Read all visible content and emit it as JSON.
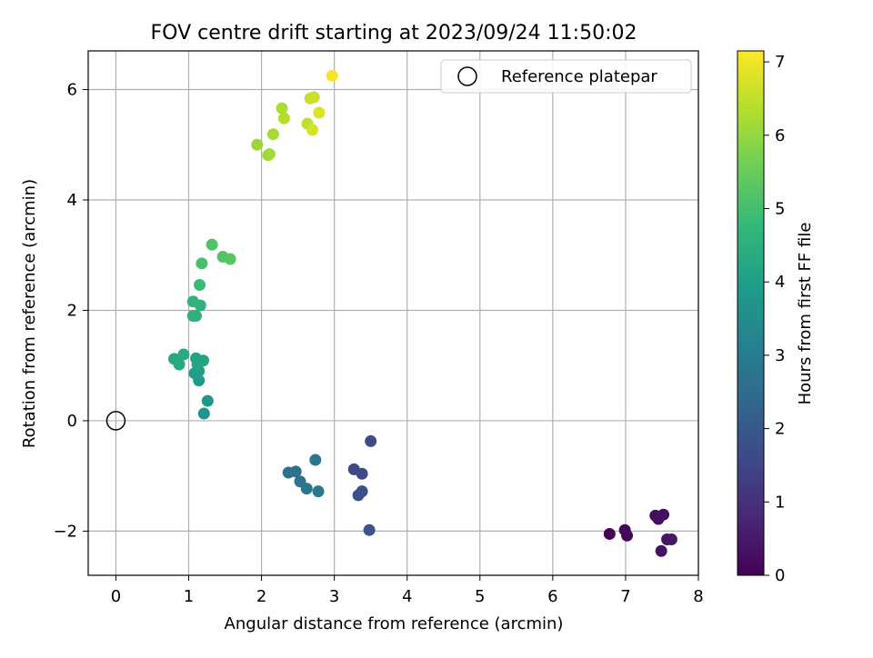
{
  "chart_data": {
    "type": "scatter",
    "title": "FOV centre drift starting at 2023/09/24 11:50:02",
    "xlabel": "Angular distance from reference (arcmin)",
    "ylabel": "Rotation from reference (arcmin)",
    "xlim": [
      -0.38,
      8.0
    ],
    "ylim": [
      -2.8,
      6.7
    ],
    "xticks": [
      0,
      1,
      2,
      3,
      4,
      5,
      6,
      7,
      8
    ],
    "yticks": [
      -2,
      0,
      2,
      4,
      6
    ],
    "ytick_labels": [
      "−2",
      "0",
      "2",
      "4",
      "6"
    ],
    "grid": true,
    "legend": {
      "placement": "top-right",
      "entries": [
        "Reference platepar"
      ]
    },
    "reference_point": {
      "x": 0,
      "y": 0,
      "label": "Reference platepar"
    },
    "colorbar": {
      "label": "Hours from first FF file",
      "range": [
        0,
        7.15
      ],
      "ticks": [
        0,
        1,
        2,
        3,
        4,
        5,
        6,
        7
      ],
      "colormap": "viridis"
    },
    "points": [
      {
        "x": 6.78,
        "y": -2.05,
        "h": 0.05
      },
      {
        "x": 6.99,
        "y": -1.98,
        "h": 0.1
      },
      {
        "x": 7.02,
        "y": -2.08,
        "h": 0.15
      },
      {
        "x": 7.41,
        "y": -1.72,
        "h": 0.2
      },
      {
        "x": 7.45,
        "y": -1.78,
        "h": 0.25
      },
      {
        "x": 7.52,
        "y": -1.7,
        "h": 0.3
      },
      {
        "x": 7.49,
        "y": -2.36,
        "h": 0.35
      },
      {
        "x": 7.57,
        "y": -2.15,
        "h": 0.4
      },
      {
        "x": 7.63,
        "y": -2.15,
        "h": 0.45
      },
      {
        "x": 3.27,
        "y": -0.88,
        "h": 1.6
      },
      {
        "x": 3.38,
        "y": -0.96,
        "h": 1.65
      },
      {
        "x": 3.5,
        "y": -0.37,
        "h": 1.7
      },
      {
        "x": 3.38,
        "y": -1.28,
        "h": 1.75
      },
      {
        "x": 3.33,
        "y": -1.35,
        "h": 1.8
      },
      {
        "x": 3.48,
        "y": -1.98,
        "h": 1.85
      },
      {
        "x": 2.37,
        "y": -0.94,
        "h": 2.65
      },
      {
        "x": 2.47,
        "y": -0.92,
        "h": 2.7
      },
      {
        "x": 2.53,
        "y": -1.1,
        "h": 2.75
      },
      {
        "x": 2.62,
        "y": -1.23,
        "h": 2.8
      },
      {
        "x": 2.74,
        "y": -0.71,
        "h": 2.85
      },
      {
        "x": 2.78,
        "y": -1.28,
        "h": 2.9
      },
      {
        "x": 1.21,
        "y": 0.13,
        "h": 3.7
      },
      {
        "x": 1.26,
        "y": 0.36,
        "h": 3.75
      },
      {
        "x": 1.14,
        "y": 0.73,
        "h": 3.9
      },
      {
        "x": 1.08,
        "y": 0.86,
        "h": 4.0
      },
      {
        "x": 1.14,
        "y": 0.9,
        "h": 4.05
      },
      {
        "x": 1.12,
        "y": 1.02,
        "h": 4.1
      },
      {
        "x": 1.1,
        "y": 1.13,
        "h": 4.15
      },
      {
        "x": 1.2,
        "y": 1.09,
        "h": 4.2
      },
      {
        "x": 0.8,
        "y": 1.12,
        "h": 4.25
      },
      {
        "x": 0.87,
        "y": 1.02,
        "h": 4.3
      },
      {
        "x": 0.93,
        "y": 1.2,
        "h": 4.35
      },
      {
        "x": 1.06,
        "y": 1.9,
        "h": 4.5
      },
      {
        "x": 1.1,
        "y": 1.9,
        "h": 4.55
      },
      {
        "x": 1.16,
        "y": 2.09,
        "h": 4.6
      },
      {
        "x": 1.06,
        "y": 2.16,
        "h": 4.65
      },
      {
        "x": 1.15,
        "y": 2.46,
        "h": 4.85
      },
      {
        "x": 1.18,
        "y": 2.85,
        "h": 5.05
      },
      {
        "x": 1.32,
        "y": 3.19,
        "h": 5.15
      },
      {
        "x": 1.47,
        "y": 2.97,
        "h": 5.2
      },
      {
        "x": 1.57,
        "y": 2.93,
        "h": 5.25
      },
      {
        "x": 1.94,
        "y": 5.0,
        "h": 6.05
      },
      {
        "x": 2.09,
        "y": 4.81,
        "h": 6.1
      },
      {
        "x": 2.11,
        "y": 4.83,
        "h": 6.15
      },
      {
        "x": 2.16,
        "y": 5.19,
        "h": 6.2
      },
      {
        "x": 2.28,
        "y": 5.66,
        "h": 6.3
      },
      {
        "x": 2.31,
        "y": 5.48,
        "h": 6.35
      },
      {
        "x": 2.63,
        "y": 5.38,
        "h": 6.5
      },
      {
        "x": 2.67,
        "y": 5.84,
        "h": 6.55
      },
      {
        "x": 2.72,
        "y": 5.86,
        "h": 6.6
      },
      {
        "x": 2.7,
        "y": 5.27,
        "h": 6.7
      },
      {
        "x": 2.79,
        "y": 5.58,
        "h": 6.8
      },
      {
        "x": 2.97,
        "y": 6.25,
        "h": 7.1
      }
    ]
  }
}
